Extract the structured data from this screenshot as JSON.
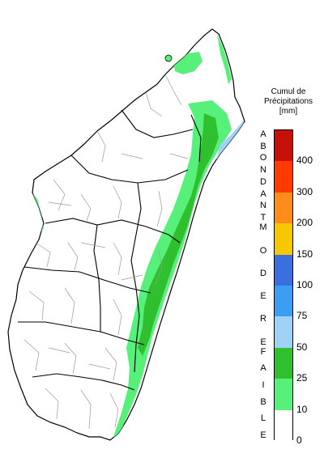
{
  "legend": {
    "title_lines": [
      "Cumul de",
      "Précipitations",
      "[mm]"
    ],
    "ticks": [
      "400",
      "300",
      "200",
      "150",
      "100",
      "75",
      "50",
      "25",
      "10",
      "0"
    ],
    "categories": [
      {
        "word": "ABONDANT"
      },
      {
        "word": "MODERE"
      },
      {
        "word": "FAIBLE"
      }
    ],
    "colors": [
      "#ffffff",
      "#57f07a",
      "#2fbf2f",
      "#9fd2f5",
      "#3d9df2",
      "#3b6fe0",
      "#f5c800",
      "#ff8c1a",
      "#ff3b00",
      "#c8100a"
    ]
  },
  "map": {
    "region": "Madagascar",
    "land_color": "#ffffff",
    "border_color": "#9a9a9a",
    "major_border_color": "#000000"
  }
}
